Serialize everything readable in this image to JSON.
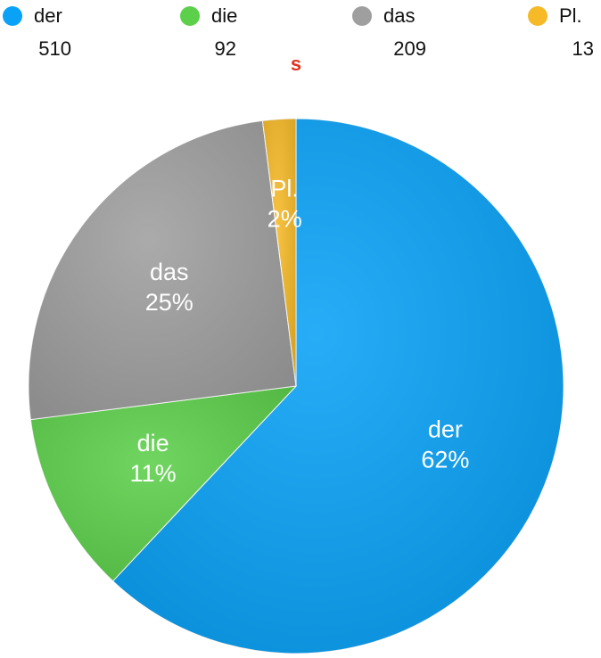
{
  "chart_data": {
    "type": "pie",
    "annotation": "s",
    "categories": [
      "der",
      "die",
      "das",
      "Pl."
    ],
    "counts": [
      510,
      92,
      209,
      13
    ],
    "values": [
      62,
      11,
      25,
      2
    ],
    "value_labels": [
      "62%",
      "11%",
      "25%",
      "2%"
    ],
    "colors": [
      "#0aa2f6",
      "#5dd04b",
      "#9f9f9f",
      "#f6b928"
    ]
  }
}
